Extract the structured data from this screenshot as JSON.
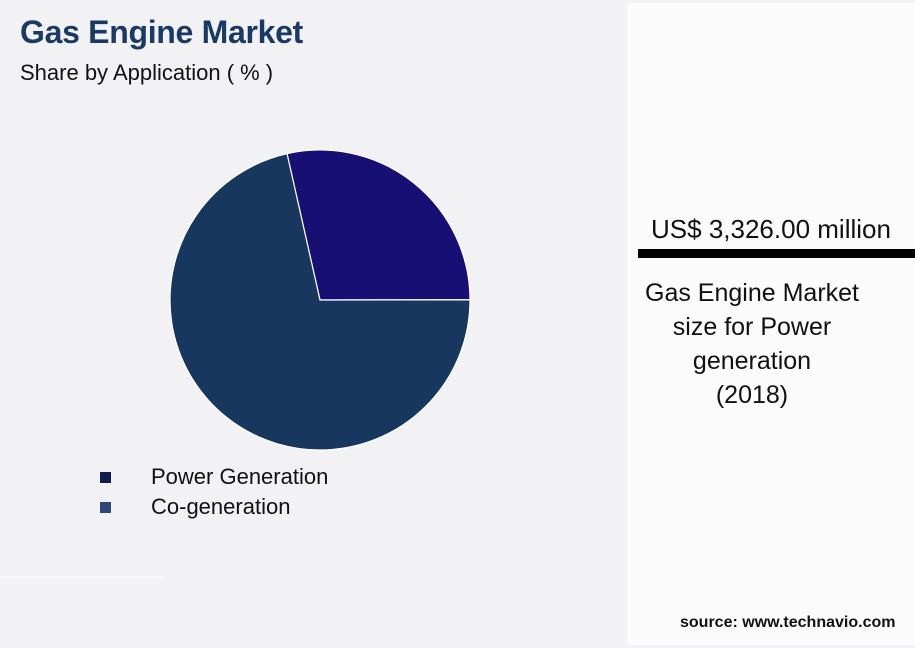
{
  "header": {
    "title": "Gas Engine Market",
    "subtitle": "Share by Application ( % )"
  },
  "chart_data": {
    "type": "pie",
    "title": "Gas Engine Market",
    "subtitle": "Share by Application ( % )",
    "categories": [
      "Power Generation",
      "Co-generation"
    ],
    "values": [
      71.5,
      28.5
    ],
    "colors": [
      "#17375f",
      "#170f73"
    ],
    "legend_position": "bottom-left",
    "start_angle_deg": -12.7
  },
  "legend": {
    "items": [
      {
        "label": "Power Generation",
        "color": "#0e1f4d"
      },
      {
        "label": "Co-generation",
        "color": "#2f4678"
      }
    ]
  },
  "side_panel": {
    "value": "US$ 3,326.00 million",
    "caption_lines": [
      "Gas Engine Market",
      "size for Power",
      "generation",
      "(2018)"
    ]
  },
  "footer": {
    "source": "source: www.technavio.com"
  }
}
